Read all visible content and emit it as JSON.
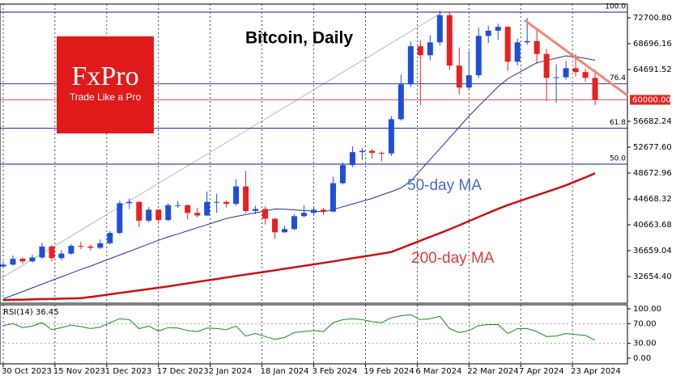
{
  "logo": {
    "brand": "FxPro",
    "tagline": "Trade Like a Pro"
  },
  "chart_data": {
    "type": "candlestick",
    "title": "Bitcoin, Daily",
    "x": [
      "30 Oct 2023",
      "2 Nov 2023",
      "5 Nov 2023",
      "8 Nov 2023",
      "11 Nov 2023",
      "14 Nov 2023",
      "17 Nov 2023",
      "20 Nov 2023",
      "23 Nov 2023",
      "26 Nov 2023",
      "29 Nov 2023",
      "2 Dec 2023",
      "5 Dec 2023",
      "8 Dec 2023",
      "11 Dec 2023",
      "14 Dec 2023",
      "17 Dec 2023",
      "20 Dec 2023",
      "23 Dec 2023",
      "26 Dec 2023",
      "29 Dec 2023",
      "1 Jan 2024",
      "4 Jan 2024",
      "7 Jan 2024",
      "10 Jan 2024",
      "13 Jan 2024",
      "16 Jan 2024",
      "19 Jan 2024",
      "22 Jan 2024",
      "25 Jan 2024",
      "28 Jan 2024",
      "31 Jan 2024",
      "3 Feb 2024",
      "6 Feb 2024",
      "9 Feb 2024",
      "12 Feb 2024",
      "15 Feb 2024",
      "18 Feb 2024",
      "21 Feb 2024",
      "24 Feb 2024",
      "27 Feb 2024",
      "1 Mar 2024",
      "4 Mar 2024",
      "7 Mar 2024",
      "10 Mar 2024",
      "13 Mar 2024",
      "16 Mar 2024",
      "19 Mar 2024",
      "22 Mar 2024",
      "25 Mar 2024",
      "28 Mar 2024",
      "31 Mar 2024",
      "3 Apr 2024",
      "6 Apr 2024",
      "9 Apr 2024",
      "12 Apr 2024",
      "15 Apr 2024",
      "18 Apr 2024",
      "21 Apr 2024",
      "24 Apr 2024",
      "27 Apr 2024",
      "30 Apr 2024"
    ],
    "open": [
      34200,
      34500,
      35400,
      35000,
      35600,
      37300,
      35500,
      36200,
      37400,
      37300,
      37100,
      37800,
      39400,
      44000,
      44200,
      41300,
      43000,
      41400,
      43700,
      43700,
      42500,
      42100,
      44200,
      44200,
      43900,
      46600,
      42800,
      43100,
      41600,
      39500,
      40000,
      42000,
      42500,
      43000,
      42700,
      47100,
      49900,
      51900,
      52100,
      51800,
      51700,
      57000,
      62400,
      68300,
      66900,
      68900,
      73100,
      65300,
      61900,
      63800,
      69900,
      70700,
      71300,
      65900,
      68900,
      69100,
      67100,
      63400,
      63500,
      64900,
      64300,
      63400
    ],
    "high": [
      35000,
      35900,
      35600,
      36000,
      37900,
      37500,
      36800,
      37700,
      38000,
      37600,
      38400,
      39700,
      44400,
      44700,
      44300,
      43400,
      43100,
      44000,
      44300,
      43800,
      43300,
      45800,
      45500,
      44400,
      47700,
      49000,
      43600,
      43500,
      41700,
      40500,
      42300,
      43700,
      43400,
      43300,
      48100,
      50300,
      52800,
      52500,
      52400,
      52000,
      57500,
      63900,
      69000,
      69200,
      70000,
      73800,
      73600,
      68100,
      67600,
      71200,
      71500,
      71800,
      71400,
      69500,
      72700,
      71200,
      67900,
      65500,
      66000,
      67100,
      64800,
      64700
    ],
    "low": [
      34000,
      34300,
      34600,
      34800,
      35400,
      35000,
      35200,
      36000,
      36900,
      36700,
      36900,
      37600,
      39200,
      43100,
      40300,
      41000,
      40900,
      41200,
      43300,
      41500,
      41800,
      42000,
      42500,
      43300,
      43600,
      42500,
      42300,
      40700,
      38500,
      39400,
      39800,
      41800,
      42200,
      42200,
      42600,
      46900,
      49600,
      50700,
      50900,
      50500,
      51300,
      56800,
      62000,
      59200,
      66100,
      68400,
      64600,
      60800,
      61500,
      63400,
      68800,
      69300,
      64500,
      65300,
      68500,
      65600,
      59800,
      59600,
      63100,
      63600,
      62800,
      59200
    ],
    "close": [
      34500,
      35400,
      35000,
      35600,
      37300,
      35500,
      36200,
      37400,
      37300,
      37100,
      37800,
      39400,
      44000,
      44200,
      41300,
      43000,
      41400,
      43700,
      43700,
      42500,
      42100,
      44200,
      44200,
      43900,
      46600,
      42800,
      43100,
      41600,
      39500,
      40000,
      42000,
      42500,
      43000,
      42700,
      47100,
      49900,
      51900,
      52100,
      51800,
      51700,
      57000,
      62400,
      68300,
      66900,
      68900,
      73100,
      65300,
      61900,
      63800,
      69900,
      70700,
      71300,
      65900,
      68900,
      69100,
      67100,
      63400,
      63500,
      64900,
      64300,
      63400,
      60000
    ],
    "up_color": "#1f4fd6",
    "down_color": "#e8201f",
    "series": [
      {
        "name": "50-day MA",
        "color": "#23309e",
        "label_color": "#4a6bc8",
        "values": [
          29190,
          29760,
          30330,
          30900,
          31470,
          32040,
          32610,
          33180,
          33750,
          34270,
          34840,
          35410,
          35980,
          36550,
          37120,
          37690,
          38260,
          38780,
          39250,
          39730,
          40200,
          40680,
          41160,
          41630,
          41940,
          42240,
          42510,
          42800,
          43100,
          43070,
          42970,
          42870,
          42780,
          42680,
          43020,
          43450,
          43870,
          44300,
          44730,
          45280,
          45800,
          46370,
          47400,
          49080,
          50760,
          52440,
          54120,
          55800,
          57480,
          59030,
          60530,
          62030,
          63250,
          64090,
          64930,
          65730,
          66090,
          66450,
          66810,
          66680,
          66420,
          66130
        ]
      },
      {
        "name": "200-day MA",
        "color": "#cc1010",
        "label_color": "#e03a3a",
        "values": [
          29010,
          29050,
          29080,
          29120,
          29160,
          29190,
          29230,
          29260,
          29300,
          29490,
          29690,
          29900,
          30100,
          30300,
          30510,
          30710,
          30920,
          31130,
          31360,
          31590,
          31820,
          32050,
          32270,
          32500,
          32730,
          32960,
          33170,
          33390,
          33620,
          33850,
          34080,
          34310,
          34530,
          34760,
          35000,
          35240,
          35480,
          35720,
          35960,
          36200,
          36450,
          37030,
          37620,
          38200,
          38780,
          39360,
          39960,
          40590,
          41230,
          41860,
          42500,
          43130,
          43710,
          44220,
          44730,
          45240,
          45750,
          46260,
          46770,
          47390,
          47980,
          48630
        ]
      }
    ],
    "xlim": [
      "29 Oct 2023",
      "10 May 2024"
    ],
    "xticks": [
      "30 Oct 2023",
      "15 Nov 2023",
      "1 Dec 2023",
      "17 Dec 2023",
      "2 Jan 2024",
      "18 Jan 2024",
      "3 Feb 2024",
      "19 Feb 2024",
      "6 Mar 2024",
      "22 Mar 2024",
      "7 Apr 2024",
      "23 Apr 2024"
    ],
    "ylim": [
      28524,
      74828
    ],
    "yticks": [
      {
        "value": 72700.8,
        "label": "72700.80"
      },
      68696.16,
      64691.52,
      56682.24,
      {
        "value": 52677.6,
        "label": "52677.60"
      },
      48672.96,
      44668.32,
      40663.68,
      36659.04,
      {
        "value": 32654.4,
        "label": "32654.40"
      }
    ],
    "grid": true,
    "price_line": {
      "value": 60000,
      "label": "60000.00",
      "color": "#e8201f"
    },
    "fibonacci": {
      "color": "#1a1a9a",
      "price_0": 26522,
      "price_100": 73577,
      "levels": [
        {
          "value": 100,
          "label": "100.0"
        },
        76.4,
        61.8,
        {
          "value": 50,
          "label": "50.0"
        }
      ]
    },
    "rsi": {
      "title": "RSI(14) 36.45",
      "color": "#1a8a1a",
      "values": [
        66,
        70,
        62,
        65,
        72,
        58,
        62,
        67,
        64,
        60,
        63,
        72,
        80,
        78,
        60,
        65,
        55,
        62,
        61,
        56,
        54,
        61,
        60,
        58,
        65,
        45,
        50,
        44,
        38,
        42,
        52,
        54,
        56,
        54,
        72,
        78,
        80,
        78,
        74,
        72,
        82,
        86,
        88,
        78,
        80,
        85,
        60,
        52,
        56,
        66,
        68,
        68,
        50,
        60,
        60,
        54,
        44,
        45,
        50,
        48,
        46,
        36.45
      ],
      "ylim": [
        0,
        100
      ],
      "yticks": [
        {
          "value": 100,
          "label": "100.00"
        },
        {
          "value": 70,
          "label": "70.00"
        },
        {
          "value": 30,
          "label": "30.00"
        },
        {
          "value": 0,
          "label": "0.00"
        }
      ]
    }
  }
}
